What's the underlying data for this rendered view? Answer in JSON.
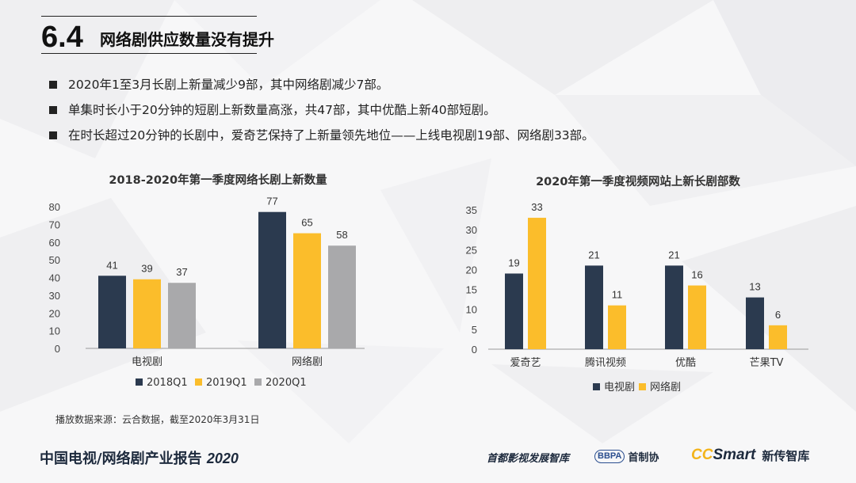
{
  "header": {
    "section_number": "6.4",
    "section_title": "网络剧供应数量没有提升"
  },
  "bullets": [
    "2020年1至3月长剧上新量减少9部，其中网络剧减少7部。",
    "单集时长小于20分钟的短剧上新数量高涨，共47部，其中优酷上新40部短剧。",
    "在时长超过20分钟的长剧中，爱奇艺保持了上新量领先地位——上线电视剧19部、网络剧33部。"
  ],
  "colors": {
    "navy": "#2b3a4f",
    "gold": "#fbbd2b",
    "gray": "#a9a9ab",
    "axis": "#9a9a9a"
  },
  "chart_data": [
    {
      "type": "bar",
      "title": "2018-2020年第一季度网络长剧上新数量",
      "categories": [
        "电视剧",
        "网络剧"
      ],
      "series": [
        {
          "name": "2018Q1",
          "values": [
            41,
            77
          ],
          "color": "#2b3a4f"
        },
        {
          "name": "2019Q1",
          "values": [
            39,
            65
          ],
          "color": "#fbbd2b"
        },
        {
          "name": "2020Q1",
          "values": [
            37,
            58
          ],
          "color": "#a9a9ab"
        }
      ],
      "ylim": [
        0,
        80
      ],
      "yticks": [
        0,
        10,
        20,
        30,
        40,
        50,
        60,
        70,
        80
      ],
      "legend_position": "bottom",
      "grid": false
    },
    {
      "type": "bar",
      "title": "2020年第一季度视频网站上新长剧部数",
      "categories": [
        "爱奇艺",
        "腾讯视频",
        "优酷",
        "芒果TV"
      ],
      "series": [
        {
          "name": "电视剧",
          "values": [
            19,
            21,
            21,
            13
          ],
          "color": "#2b3a4f"
        },
        {
          "name": "网络剧",
          "values": [
            33,
            11,
            16,
            6
          ],
          "color": "#fbbd2b"
        }
      ],
      "ylim": [
        0,
        35
      ],
      "yticks": [
        0,
        5,
        10,
        15,
        20,
        25,
        30,
        35
      ],
      "legend_position": "bottom",
      "grid": false
    }
  ],
  "source_note": "播放数据来源：云合数据，截至2020年3月31日",
  "footer": {
    "report_title": "中国电视/网络剧产业报告",
    "report_year": "2020",
    "logo1_text": "首都影视发展智库",
    "logo2_badge": "BBPA",
    "logo2_text": "首制协",
    "logo3_cc": "CC",
    "logo3_smart": "Smart",
    "logo3_text": "新传智库"
  }
}
